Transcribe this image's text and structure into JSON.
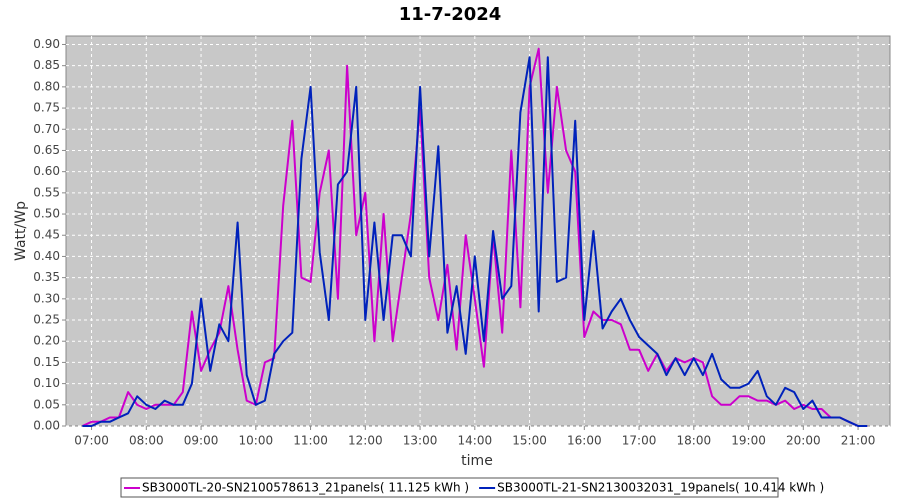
{
  "chart_data": {
    "type": "line",
    "title": "11-7-2024",
    "x_label": "time",
    "y_label": "Watt/Wp",
    "x": [
      "06:50",
      "07:00",
      "07:10",
      "07:20",
      "07:30",
      "07:40",
      "07:50",
      "08:00",
      "08:10",
      "08:20",
      "08:30",
      "08:40",
      "08:50",
      "09:00",
      "09:10",
      "09:20",
      "09:30",
      "09:40",
      "09:50",
      "10:00",
      "10:10",
      "10:20",
      "10:30",
      "10:40",
      "10:50",
      "11:00",
      "11:10",
      "11:20",
      "11:30",
      "11:40",
      "11:50",
      "12:00",
      "12:10",
      "12:20",
      "12:30",
      "12:40",
      "12:50",
      "13:00",
      "13:10",
      "13:20",
      "13:30",
      "13:40",
      "13:50",
      "14:00",
      "14:10",
      "14:20",
      "14:30",
      "14:40",
      "14:50",
      "15:00",
      "15:10",
      "15:20",
      "15:30",
      "15:40",
      "15:50",
      "16:00",
      "16:10",
      "16:20",
      "16:30",
      "16:40",
      "16:50",
      "17:00",
      "17:10",
      "17:20",
      "17:30",
      "17:40",
      "17:50",
      "18:00",
      "18:10",
      "18:20",
      "18:30",
      "18:40",
      "18:50",
      "19:00",
      "19:10",
      "19:20",
      "19:30",
      "19:40",
      "19:50",
      "20:00",
      "20:10",
      "20:20",
      "20:30",
      "20:40",
      "20:50",
      "21:00",
      "21:10"
    ],
    "series": [
      {
        "name": "SB3000TL-20-SN2100578613_21panels( 11.125 kWh )",
        "color": "#cc00cc",
        "values": [
          0.0,
          0.01,
          0.01,
          0.02,
          0.02,
          0.08,
          0.05,
          0.04,
          0.05,
          0.05,
          0.05,
          0.08,
          0.27,
          0.13,
          0.18,
          0.22,
          0.33,
          0.18,
          0.06,
          0.05,
          0.15,
          0.16,
          0.52,
          0.72,
          0.35,
          0.34,
          0.55,
          0.65,
          0.3,
          0.85,
          0.45,
          0.55,
          0.2,
          0.5,
          0.2,
          0.35,
          0.5,
          0.75,
          0.35,
          0.25,
          0.38,
          0.18,
          0.45,
          0.3,
          0.14,
          0.45,
          0.22,
          0.65,
          0.28,
          0.8,
          0.89,
          0.55,
          0.8,
          0.65,
          0.6,
          0.21,
          0.27,
          0.25,
          0.25,
          0.24,
          0.18,
          0.18,
          0.13,
          0.17,
          0.13,
          0.16,
          0.15,
          0.16,
          0.15,
          0.07,
          0.05,
          0.05,
          0.07,
          0.07,
          0.06,
          0.06,
          0.05,
          0.06,
          0.04,
          0.05,
          0.04,
          0.04,
          0.02,
          0.02,
          0.01,
          0.0,
          0.0
        ]
      },
      {
        "name": "SB3000TL-21-SN2130032031_19panels( 10.414 kWh )",
        "color": "#0022bb",
        "values": [
          0.0,
          0.0,
          0.01,
          0.01,
          0.02,
          0.03,
          0.07,
          0.05,
          0.04,
          0.06,
          0.05,
          0.05,
          0.1,
          0.3,
          0.13,
          0.24,
          0.2,
          0.48,
          0.12,
          0.05,
          0.06,
          0.17,
          0.2,
          0.22,
          0.63,
          0.8,
          0.41,
          0.25,
          0.57,
          0.6,
          0.8,
          0.25,
          0.48,
          0.25,
          0.45,
          0.45,
          0.4,
          0.8,
          0.4,
          0.66,
          0.22,
          0.33,
          0.17,
          0.4,
          0.2,
          0.46,
          0.3,
          0.33,
          0.74,
          0.87,
          0.27,
          0.87,
          0.34,
          0.35,
          0.72,
          0.25,
          0.46,
          0.23,
          0.27,
          0.3,
          0.25,
          0.21,
          0.19,
          0.17,
          0.12,
          0.16,
          0.12,
          0.16,
          0.12,
          0.17,
          0.11,
          0.09,
          0.09,
          0.1,
          0.13,
          0.07,
          0.05,
          0.09,
          0.08,
          0.04,
          0.06,
          0.02,
          0.02,
          0.02,
          0.01,
          0.0,
          0.0
        ]
      }
    ],
    "xlim": [
      "06:32",
      "21:35"
    ],
    "xticks": [
      "07:00",
      "08:00",
      "09:00",
      "10:00",
      "11:00",
      "12:00",
      "13:00",
      "14:00",
      "15:00",
      "16:00",
      "17:00",
      "18:00",
      "19:00",
      "20:00",
      "21:00"
    ],
    "ylim": [
      0,
      0.92
    ],
    "yticks": [
      {
        "value": 0,
        "label": "0.00"
      },
      {
        "value": 0.05,
        "label": "0.05"
      },
      {
        "value": 0.1,
        "label": "0.10"
      },
      {
        "value": 0.15,
        "label": "0.15"
      },
      {
        "value": 0.2,
        "label": "0.20"
      },
      {
        "value": 0.25,
        "label": "0.25"
      },
      {
        "value": 0.3,
        "label": "0.30"
      },
      {
        "value": 0.35,
        "label": "0.35"
      },
      {
        "value": 0.4,
        "label": "0.40"
      },
      {
        "value": 0.45,
        "label": "0.45"
      },
      {
        "value": 0.5,
        "label": "0.50"
      },
      {
        "value": 0.55,
        "label": "0.55"
      },
      {
        "value": 0.6,
        "label": "0.60"
      },
      {
        "value": 0.65,
        "label": "0.65"
      },
      {
        "value": 0.7,
        "label": "0.70"
      },
      {
        "value": 0.75,
        "label": "0.75"
      },
      {
        "value": 0.8,
        "label": "0.80"
      },
      {
        "value": 0.85,
        "label": "0.85"
      },
      {
        "value": 0.9,
        "label": "0.90"
      }
    ],
    "grid": true
  }
}
